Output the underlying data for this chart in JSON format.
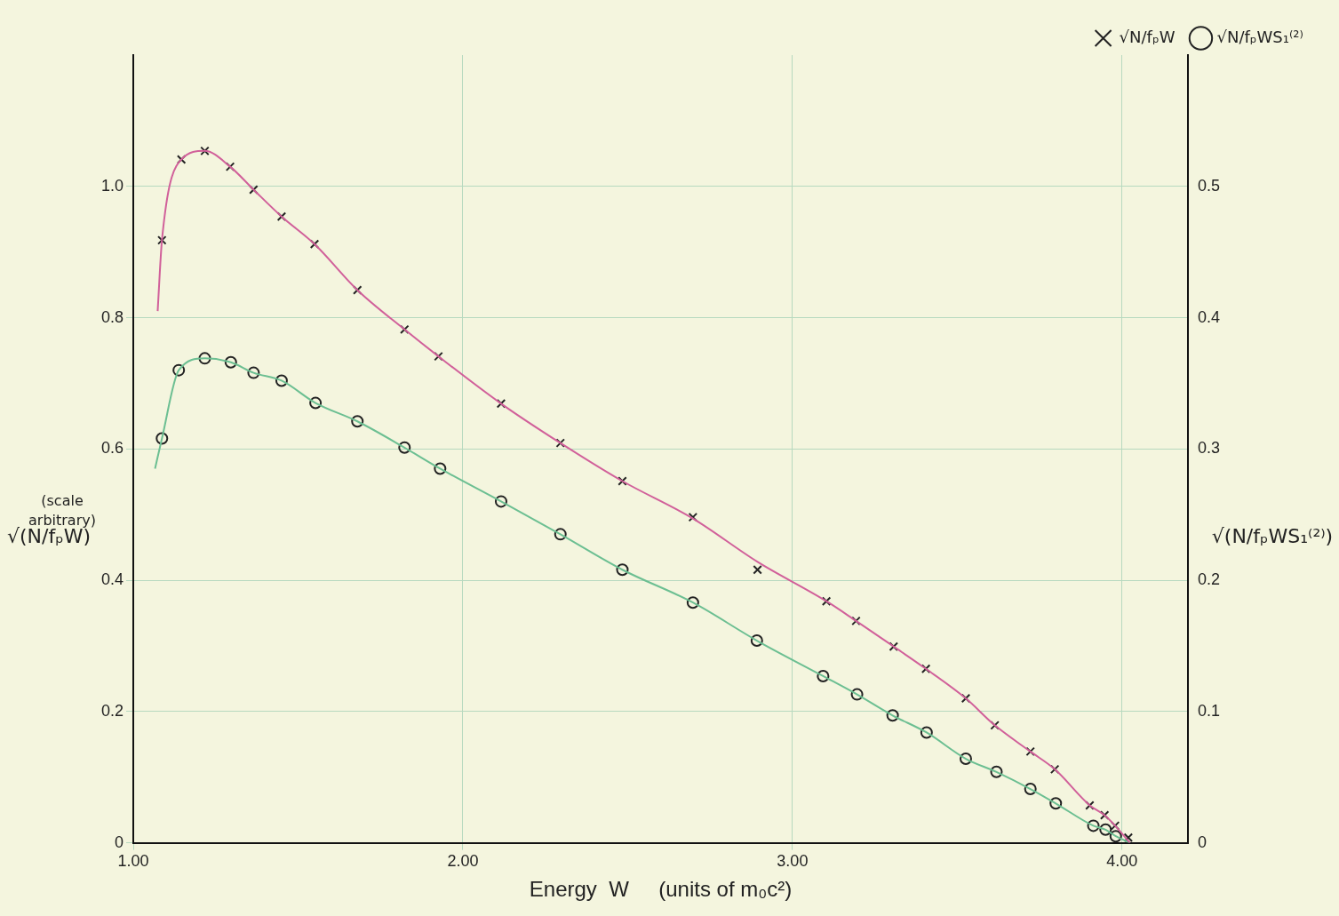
{
  "chart_data": {
    "type": "line",
    "xlabel": "Energy  W     (units of m₀c²)",
    "ylabel": "√(N/fₚW)",
    "y2label": "√(N/fₚWS₁⁽²⁾)",
    "annotations": [
      "(scale arbitrary)"
    ],
    "xlim": [
      1,
      4.2
    ],
    "xticks": [
      {
        "value": 1,
        "label": "1.00"
      },
      {
        "value": 2,
        "label": "2.00"
      },
      {
        "value": 3,
        "label": "3.00"
      },
      {
        "value": 4,
        "label": "4.00"
      }
    ],
    "ylim": [
      0,
      1.2
    ],
    "yticks": [
      0,
      0.2,
      0.4,
      0.6,
      0.8,
      {
        "value": 1.0,
        "label": "1.0"
      }
    ],
    "y2lim": [
      0,
      0.6
    ],
    "y2ticks": [
      0,
      0.1,
      0.2,
      0.3,
      0.4,
      0.5
    ],
    "grid": true,
    "legend": "top right",
    "series": [
      {
        "type": "line",
        "color": "#d1609a",
        "marker": "none",
        "x": [
          1.074,
          1.087,
          1.146,
          1.217,
          1.294,
          1.365,
          1.45,
          1.55,
          1.68,
          1.823,
          1.926,
          2.116,
          2.296,
          2.484,
          2.698,
          2.894,
          3.103,
          3.193,
          3.307,
          3.405,
          3.526,
          3.614,
          3.722,
          3.796,
          3.902,
          3.947,
          3.979,
          4.024
        ],
        "values": [
          0.81,
          0.918,
          1.041,
          1.054,
          1.03,
          0.995,
          0.954,
          0.912,
          0.842,
          0.782,
          0.741,
          0.669,
          0.609,
          0.551,
          0.494,
          0.428,
          0.368,
          0.338,
          0.299,
          0.265,
          0.22,
          0.179,
          0.139,
          0.112,
          0.057,
          0.042,
          0.026,
          0
        ]
      },
      {
        "type": "line",
        "color": "#6cbf92",
        "marker": "none",
        "axis": "y2",
        "x": [
          1.066,
          1.087,
          1.138,
          1.217,
          1.296,
          1.365,
          1.45,
          1.553,
          1.68,
          1.823,
          1.931,
          2.116,
          2.296,
          2.484,
          2.698,
          2.892,
          3.093,
          3.196,
          3.304,
          3.407,
          3.526,
          3.619,
          3.722,
          3.799,
          3.913,
          3.95,
          3.981,
          4.024
        ],
        "values": [
          0.285,
          0.308,
          0.36,
          0.369,
          0.366,
          0.358,
          0.352,
          0.335,
          0.321,
          0.301,
          0.285,
          0.26,
          0.235,
          0.208,
          0.183,
          0.154,
          0.127,
          0.113,
          0.097,
          0.084,
          0.064,
          0.054,
          0.041,
          0.03,
          0.013,
          0.01,
          0.005,
          0
        ]
      },
      {
        "type": "scatter",
        "name": "√N/fₚW",
        "color": "#222222",
        "marker": "cross",
        "x": [
          1.087,
          1.146,
          1.217,
          1.294,
          1.365,
          1.45,
          1.55,
          1.68,
          1.823,
          1.926,
          2.116,
          2.296,
          2.484,
          2.698,
          2.894,
          3.103,
          3.193,
          3.307,
          3.405,
          3.526,
          3.614,
          3.722,
          3.796,
          3.902,
          3.947,
          3.979,
          4.019
        ],
        "values": [
          0.918,
          1.041,
          1.054,
          1.03,
          0.995,
          0.954,
          0.912,
          0.842,
          0.782,
          0.741,
          0.669,
          0.609,
          0.551,
          0.496,
          0.416,
          0.368,
          0.338,
          0.299,
          0.265,
          0.22,
          0.179,
          0.139,
          0.112,
          0.057,
          0.042,
          0.026,
          0.008
        ]
      },
      {
        "type": "scatter",
        "name": "√N/fₚWS₁⁽²⁾",
        "color": "#222222",
        "marker": "circle",
        "axis": "y2",
        "x": [
          1.087,
          1.138,
          1.217,
          1.296,
          1.365,
          1.45,
          1.553,
          1.68,
          1.823,
          1.931,
          2.116,
          2.296,
          2.484,
          2.698,
          2.892,
          3.093,
          3.196,
          3.304,
          3.407,
          3.526,
          3.619,
          3.722,
          3.799,
          3.913,
          3.95,
          3.981
        ],
        "values": [
          0.308,
          0.36,
          0.369,
          0.366,
          0.358,
          0.352,
          0.335,
          0.321,
          0.301,
          0.285,
          0.26,
          0.235,
          0.208,
          0.183,
          0.154,
          0.127,
          0.113,
          0.097,
          0.084,
          0.064,
          0.054,
          0.041,
          0.03,
          0.013,
          0.01,
          0.005
        ]
      }
    ]
  }
}
